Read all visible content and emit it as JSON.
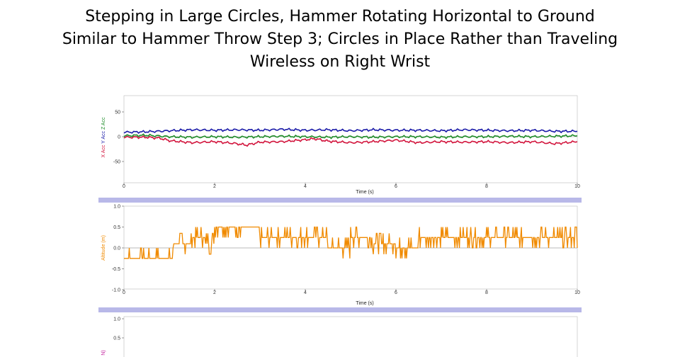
{
  "title": {
    "line1": "Stepping in Large Circles, Hammer Rotating Horizontal to Ground",
    "line2": "Similar to Hammer Throw Step 3; Circles in Place Rather than Traveling",
    "line3": "Wireless on Right Wrist"
  },
  "colors": {
    "x_acc": "#d2143c",
    "y_acc": "#1a1aa8",
    "z_acc": "#1e8c28",
    "altitude": "#f08a00",
    "separator": "#b8b8e8"
  },
  "chart_data": [
    {
      "type": "line",
      "xlabel": "Time (s)",
      "ylabel_parts": [
        "X Acc",
        "Y Acc",
        "Z Acc"
      ],
      "xlim": [
        0,
        10
      ],
      "ylim": [
        -75,
        75
      ],
      "xticks": [
        "0",
        "2",
        "4",
        "6",
        "8",
        "10"
      ],
      "yticks": [
        "50",
        "0",
        "-50"
      ],
      "series": [
        {
          "name": "Y Acc",
          "color_key": "y_acc",
          "x": [
            0,
            0.5,
            1.0,
            1.5,
            2.0,
            2.5,
            3.0,
            3.5,
            4.0,
            4.5,
            5.0,
            5.5,
            6.0,
            6.5,
            7.0,
            7.5,
            8.0,
            8.5,
            9.0,
            9.5,
            10.0
          ],
          "y": [
            9,
            10,
            12,
            14,
            13,
            14,
            13,
            15,
            13,
            14,
            12,
            14,
            13,
            13,
            12,
            14,
            13,
            12,
            13,
            11,
            11
          ]
        },
        {
          "name": "Z Acc",
          "color_key": "z_acc",
          "x": [
            0,
            0.5,
            1.0,
            1.5,
            2.0,
            2.5,
            3.0,
            3.5,
            4.0,
            4.5,
            5.0,
            5.5,
            6.0,
            6.5,
            7.0,
            7.5,
            8.0,
            8.5,
            9.0,
            9.5,
            10.0
          ],
          "y": [
            2,
            3,
            0,
            -1,
            0,
            -1,
            0,
            1,
            0,
            -1,
            0,
            -1,
            0,
            0,
            -1,
            0,
            0,
            1,
            0,
            1,
            2
          ]
        },
        {
          "name": "X Acc",
          "color_key": "x_acc",
          "x": [
            0,
            0.5,
            0.8,
            1.0,
            1.5,
            2.0,
            2.5,
            2.7,
            3.0,
            3.5,
            4.0,
            4.2,
            4.5,
            5.0,
            5.5,
            6.0,
            6.5,
            7.0,
            7.5,
            8.0,
            8.5,
            9.0,
            9.5,
            10.0
          ],
          "y": [
            -1,
            -1,
            -3,
            -8,
            -12,
            -10,
            -14,
            -17,
            -11,
            -10,
            -6,
            -4,
            -9,
            -12,
            -10,
            -7,
            -12,
            -10,
            -11,
            -10,
            -12,
            -10,
            -14,
            -10
          ]
        }
      ]
    },
    {
      "type": "line",
      "xlabel": "Time (s)",
      "ylabel": "Altitude (m)",
      "xlim": [
        0,
        10
      ],
      "ylim": [
        -1.0,
        1.0
      ],
      "xticks": [
        "0",
        "2",
        "4",
        "6",
        "8",
        "10"
      ],
      "yticks": [
        "1.0",
        "0.5",
        "0.0",
        "-0.5",
        "-1.0"
      ],
      "series": [
        {
          "color_key": "altitude",
          "x": [
            0,
            0.5,
            1.0,
            1.1,
            1.5,
            1.8,
            2.0,
            2.5,
            3.0,
            3.5,
            4.0,
            4.5,
            5.0,
            5.5,
            6.0,
            6.5,
            7.0,
            7.5,
            8.0,
            8.5,
            9.0,
            9.5,
            10.0
          ],
          "y": [
            -0.25,
            -0.25,
            -0.25,
            0.1,
            0.25,
            0.1,
            0.5,
            0.5,
            0.25,
            0.25,
            0.25,
            0.0,
            0.25,
            0.1,
            0.0,
            0.25,
            0.25,
            0.25,
            0.25,
            0.25,
            0.25,
            0.25,
            0.0
          ]
        }
      ]
    },
    {
      "type": "line",
      "ylabel_visible": "N)",
      "yticks": [
        "1.0",
        "0.5"
      ]
    }
  ]
}
